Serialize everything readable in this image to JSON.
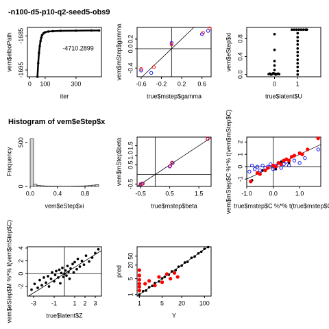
{
  "chart_data": [
    {
      "type": "line",
      "title": "-n100-d5-p10-q2-seed5-obs9",
      "xlabel": "iter",
      "ylabel": "vem$elboPath",
      "annotation": "-4710.2899",
      "xlim": [
        -15,
        465
      ],
      "ylim": [
        -1697,
        -1682.5
      ],
      "xticks": [
        0,
        100,
        300
      ],
      "yticks": [
        -1695,
        -1685
      ],
      "series": [
        {
          "color": "#000000",
          "x": [
            50,
            55,
            60,
            65,
            70,
            75,
            80,
            90,
            100,
            120,
            150,
            200,
            300,
            400,
            450
          ],
          "values": [
            -1697,
            -1693,
            -1690,
            -1688,
            -1686.5,
            -1685.5,
            -1684.8,
            -1684.2,
            -1683.9,
            -1683.7,
            -1683.6,
            -1683.5,
            -1683.45,
            -1683.4,
            -1683.4
          ]
        }
      ]
    },
    {
      "type": "scatter",
      "xlabel": "true$mstep$gamma",
      "ylabel": "vem$mStep$gamma",
      "diagonal": true,
      "hline": 0,
      "vline": 0,
      "xlim": [
        -0.68,
        0.78
      ],
      "ylim": [
        -0.58,
        0.44
      ],
      "xticks": [
        -0.6,
        -0.2,
        0.2,
        0.6
      ],
      "yticks": [
        -0.4,
        {
          "value": 0,
          "label": "0.0"
        },
        0.2
      ],
      "series": [
        {
          "color": "#0000ff",
          "marker": "open",
          "x": [
            -0.6,
            -0.4,
            0.0,
            0.6,
            0.72
          ],
          "values": [
            -0.45,
            -0.5,
            0.12,
            0.3,
            0.37
          ]
        },
        {
          "color": "#ff0000",
          "marker": "open",
          "x": [
            -0.6,
            -0.35,
            0.0,
            0.62,
            0.75
          ],
          "values": [
            -0.42,
            -0.38,
            0.09,
            0.33,
            0.42
          ]
        }
      ]
    },
    {
      "type": "scatter",
      "xlabel": "true$latent$U",
      "ylabel": "vem$eStep$xi",
      "xlim": [
        -1.2,
        2.0
      ],
      "ylim": [
        -0.05,
        1.05
      ],
      "xticks": [
        0,
        1
      ],
      "yticks": [
        {
          "value": 0,
          "label": "0.0"
        },
        {
          "value": 0.4,
          "label": "0.4"
        },
        {
          "value": 0.8,
          "label": "0.8"
        }
      ],
      "series": [
        {
          "color": "#000000",
          "marker": "dot",
          "x": [
            -0.25,
            -0.2,
            -0.15,
            -0.1,
            -0.05,
            0,
            0.05,
            0.1,
            0.15,
            0.2,
            0,
            0,
            0,
            0,
            0,
            1,
            1,
            1,
            1,
            1,
            1,
            1,
            1,
            1,
            1,
            1,
            1,
            0.75,
            0.85,
            0.95,
            1.05,
            1.15,
            1.25,
            1.35,
            1.4
          ],
          "values": [
            0.01,
            0.02,
            0.0,
            0.01,
            0.03,
            0.02,
            0.0,
            0.01,
            0.02,
            0.01,
            0.1,
            0.2,
            0.3,
            0.55,
            0.9,
            0.0,
            0.08,
            0.17,
            0.25,
            0.33,
            0.42,
            0.5,
            0.58,
            0.67,
            0.75,
            0.83,
            0.92,
            1.0,
            1.0,
            1.0,
            1.0,
            1.0,
            1.0,
            1.0,
            1.0
          ]
        }
      ]
    },
    {
      "type": "histogram",
      "title": "Histogram of vem$eStep$x",
      "xlabel": "vem$eStep$xi",
      "ylabel": "Frequency",
      "xlim": [
        -0.04,
        1.04
      ],
      "ylim": [
        0,
        560
      ],
      "xticks": [
        {
          "value": 0,
          "label": "0.0"
        },
        {
          "value": 0.4,
          "label": "0.4"
        },
        {
          "value": 0.8,
          "label": "0.8"
        }
      ],
      "yticks": [
        0,
        500
      ],
      "color": "#d3d3d3",
      "bins": [
        0,
        0.05,
        0.1,
        0.15,
        0.2,
        0.25,
        0.3,
        0.35,
        0.4,
        0.45,
        0.5,
        0.55,
        0.6,
        0.65,
        0.7,
        0.75,
        0.8,
        0.85,
        0.9,
        0.95,
        1.0
      ],
      "values": [
        540,
        25,
        12,
        8,
        6,
        5,
        4,
        4,
        3,
        3,
        3,
        3,
        4,
        4,
        5,
        6,
        8,
        10,
        15,
        20,
        330
      ]
    },
    {
      "type": "scatter",
      "xlabel": "true$mstep$beta",
      "ylabel": "vem$mStep$beta",
      "diagonal": true,
      "hline": 0,
      "vline": 0,
      "xlim": [
        -0.62,
        1.92
      ],
      "ylim": [
        -0.62,
        1.95
      ],
      "xticks": [
        -0.5,
        0.5,
        1.5
      ],
      "yticks": [
        -0.5,
        0.5,
        {
          "value": 1,
          "label": "1.0"
        },
        1.5
      ],
      "series": [
        {
          "color": "#0000ff",
          "marker": "open",
          "x": [
            -0.5,
            -0.45,
            0.5,
            0.6,
            1.8
          ],
          "values": [
            -0.52,
            -0.48,
            0.42,
            0.6,
            1.85
          ]
        },
        {
          "color": "#ff0000",
          "marker": "open",
          "x": [
            -0.5,
            -0.42,
            0.52,
            0.58,
            1.8
          ],
          "values": [
            -0.5,
            -0.47,
            0.45,
            0.62,
            1.87
          ]
        }
      ]
    },
    {
      "type": "scatter",
      "xlabel": "true$mstep$C %*% t(true$mstep$C)",
      "ylabel": "vem$mStep$C %*% t(vem$mStep$C)",
      "diagonal": true,
      "hline": 0,
      "vline": 0,
      "xlim": [
        -1.0,
        1.8
      ],
      "ylim": [
        -1.6,
        2.4
      ],
      "xticks": [
        {
          "value": -1,
          "label": "-1.0"
        },
        {
          "value": 0,
          "label": "0.0"
        },
        {
          "value": 1,
          "label": "1.0"
        }
      ],
      "yticks": [
        -1,
        0,
        1,
        2
      ],
      "series": [
        {
          "color": "#000000",
          "marker": "dot",
          "x": [
            -0.8,
            -0.4,
            0.1,
            0.3,
            0.6
          ],
          "values": [
            -1.1,
            -0.3,
            -0.2,
            0.4,
            0.3
          ]
        },
        {
          "color": "#0000ff",
          "marker": "open",
          "x": [
            -0.9,
            -0.8,
            -0.7,
            -0.6,
            -0.5,
            -0.4,
            -0.3,
            -0.2,
            -0.1,
            0.0,
            0.1,
            0.2,
            0.3,
            0.4,
            0.5,
            0.6,
            0.8,
            1.0,
            1.2,
            1.7
          ],
          "values": [
            -0.4,
            0.1,
            -0.2,
            0.0,
            -0.3,
            0.1,
            -0.1,
            0.0,
            0.2,
            -0.2,
            0.1,
            0.3,
            -0.1,
            0.2,
            0.4,
            0.1,
            0.5,
            0.3,
            0.7,
            1.4
          ]
        },
        {
          "color": "#ff0000",
          "marker": "filled",
          "x": [
            -0.85,
            -0.6,
            -0.5,
            -0.3,
            -0.2,
            0.0,
            0.1,
            0.2,
            0.3,
            0.4,
            0.5,
            0.6,
            0.7,
            0.8,
            1.0,
            1.1,
            1.3,
            1.7
          ],
          "values": [
            -1.2,
            -0.5,
            -0.6,
            -0.3,
            -0.1,
            0.1,
            0.0,
            0.3,
            0.2,
            0.5,
            0.6,
            0.5,
            0.8,
            0.9,
            1.1,
            1.0,
            1.4,
            2.3
          ]
        }
      ]
    },
    {
      "type": "scatter",
      "xlabel": "true$latent$Z",
      "ylabel": "vem$eStep$M %*% t(vem$mStep$C)",
      "diagonal": true,
      "hline": 0,
      "vline": 0,
      "xlim": [
        -3.6,
        3.6
      ],
      "ylim": [
        -3.5,
        4.2
      ],
      "xticks": [
        -3,
        -1,
        1,
        2,
        3
      ],
      "yticks": [
        -2,
        0,
        2,
        4
      ],
      "series": [
        {
          "color": "#000000",
          "marker": "dot",
          "x": [
            -3.2,
            -2.9,
            -2.6,
            -2.4,
            -2.2,
            -2.0,
            -1.8,
            -1.6,
            -1.5,
            -1.3,
            -1.2,
            -1.0,
            -0.9,
            -0.8,
            -0.6,
            -0.5,
            -0.4,
            -0.3,
            -0.2,
            -0.1,
            0.0,
            0.1,
            0.2,
            0.3,
            0.4,
            0.5,
            0.6,
            0.8,
            0.9,
            1.0,
            1.2,
            1.3,
            1.5,
            1.7,
            1.9,
            2.1,
            2.4,
            2.7,
            3.0,
            3.3
          ],
          "values": [
            -2.5,
            -1.6,
            -2.2,
            -1.0,
            -1.8,
            -0.6,
            -1.4,
            -0.4,
            -2.0,
            -0.8,
            0.2,
            -1.2,
            -0.2,
            0.4,
            -0.6,
            0.6,
            -1.5,
            0.1,
            0.9,
            -0.5,
            0.0,
            0.5,
            -0.3,
            1.2,
            0.3,
            -0.8,
            0.8,
            1.5,
            0.2,
            1.8,
            0.7,
            2.3,
            1.1,
            2.0,
            1.4,
            2.8,
            1.9,
            2.5,
            3.2,
            3.8
          ]
        }
      ]
    },
    {
      "type": "scatter",
      "xlabel": "Y",
      "ylabel": "pred",
      "log": true,
      "diagonal": true,
      "xlim": [
        0.85,
        160
      ],
      "ylim": [
        0.85,
        130
      ],
      "xticks": [
        1,
        5,
        20,
        100
      ],
      "yticks": [
        1,
        5,
        20,
        50
      ],
      "series": [
        {
          "color": "#000000",
          "marker": "dot",
          "x": [
            1,
            1.3,
            1.6,
            2,
            2.5,
            3,
            4,
            5,
            6,
            8,
            10,
            13,
            16,
            20,
            25,
            30,
            40,
            50,
            65,
            80,
            100,
            130
          ],
          "values": [
            1,
            1.4,
            1.5,
            2.1,
            2.4,
            3.2,
            3.8,
            5.2,
            6,
            7.5,
            10.5,
            12,
            17,
            19,
            26,
            28,
            42,
            48,
            66,
            78,
            105,
            125
          ]
        },
        {
          "color": "#ff0000",
          "marker": "filled",
          "x": [
            1,
            1,
            1,
            1,
            1,
            1,
            1.5,
            2,
            3,
            4,
            5,
            7,
            9,
            12,
            15
          ],
          "values": [
            1.5,
            2.2,
            3,
            4.5,
            7,
            12,
            3,
            4,
            2.5,
            6,
            3.5,
            8,
            5,
            9,
            6
          ]
        }
      ]
    }
  ]
}
